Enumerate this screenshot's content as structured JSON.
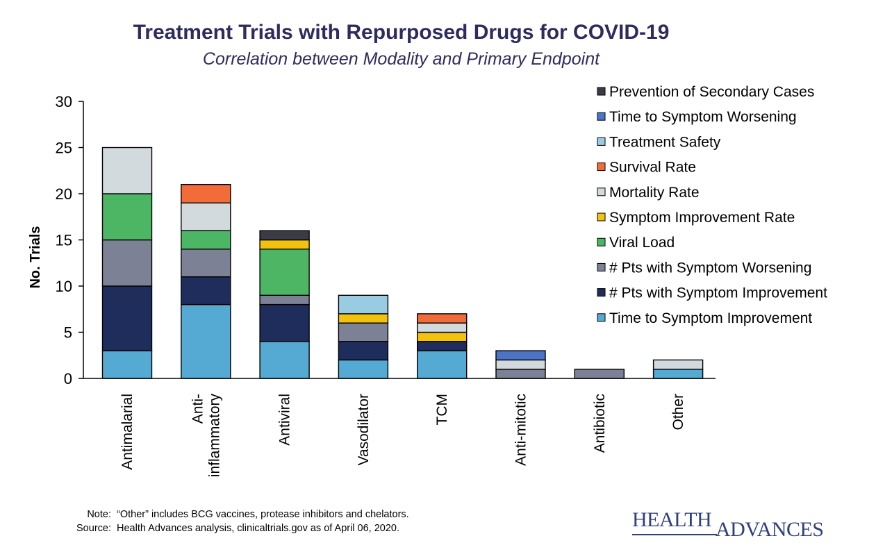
{
  "title": "Treatment Trials with Repurposed Drugs for COVID-19",
  "subtitle": "Correlation between Modality and Primary Endpoint",
  "chart_data": {
    "type": "bar",
    "stacked": true,
    "title": "Treatment Trials with Repurposed Drugs for COVID-19",
    "subtitle": "Correlation between Modality and Primary Endpoint",
    "xlabel": "",
    "ylabel": "No. Trials",
    "ylim": [
      0,
      30
    ],
    "yticks": [
      0,
      5,
      10,
      15,
      20,
      25,
      30
    ],
    "grid": false,
    "legend_position": "right",
    "categories": [
      "Antimalarial",
      "Anti-\ninflammatory",
      "Antiviral",
      "Vasodilator",
      "TCM",
      "Anti-mitotic",
      "Antibiotic",
      "Other"
    ],
    "series": [
      {
        "name": "Time to Symptom Improvement",
        "color": "#54aad2",
        "values": [
          3,
          8,
          4,
          2,
          3,
          0,
          0,
          1
        ]
      },
      {
        "name": "# Pts with Symptom Improvement",
        "color": "#1f2d5c",
        "values": [
          7,
          3,
          4,
          2,
          1,
          0,
          0,
          0
        ]
      },
      {
        "name": "# Pts with Symptom Worsening",
        "color": "#7c8195",
        "values": [
          5,
          3,
          1,
          2,
          0,
          1,
          1,
          0
        ]
      },
      {
        "name": "Viral Load",
        "color": "#4db665",
        "values": [
          5,
          2,
          5,
          0,
          0,
          0,
          0,
          0
        ]
      },
      {
        "name": "Symptom Improvement Rate",
        "color": "#f2c20f",
        "values": [
          0,
          0,
          1,
          1,
          1,
          0,
          0,
          0
        ]
      },
      {
        "name": "Mortality Rate",
        "color": "#d2dade",
        "values": [
          5,
          3,
          0,
          0,
          1,
          1,
          0,
          1
        ]
      },
      {
        "name": "Survival Rate",
        "color": "#f26c3a",
        "values": [
          0,
          2,
          0,
          0,
          1,
          0,
          0,
          0
        ]
      },
      {
        "name": "Treatment Safety",
        "color": "#99cbe2",
        "values": [
          0,
          0,
          0,
          2,
          0,
          0,
          0,
          0
        ]
      },
      {
        "name": "Time to Symptom Worsening",
        "color": "#4b74c6",
        "values": [
          0,
          0,
          0,
          0,
          0,
          1,
          0,
          0
        ]
      },
      {
        "name": "Prevention of Secondary Cases",
        "color": "#3a3b45",
        "values": [
          0,
          0,
          1,
          0,
          0,
          0,
          0,
          0
        ]
      }
    ]
  },
  "note": {
    "note_label": "Note:",
    "note_text": "“Other” includes BCG vaccines, protease inhibitors and chelators.",
    "source_label": "Source:",
    "source_text": "Health Advances analysis, clinicaltrials.gov as of April 06, 2020."
  },
  "logo": {
    "word1": "HEALTH",
    "word2": "ADVANCES"
  }
}
